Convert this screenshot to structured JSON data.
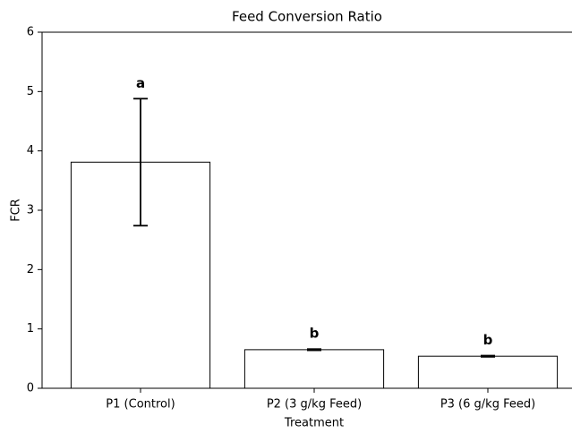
{
  "chart_data": {
    "type": "bar",
    "title": "Feed Conversion Ratio",
    "xlabel": "Treatment",
    "ylabel": "FCR",
    "categories": [
      "P1 (Control)",
      "P2 (3 g/kg Feed)",
      "P3 (6 g/kg Feed)"
    ],
    "values": [
      3.81,
      0.65,
      0.54
    ],
    "errors": [
      1.07,
      0.01,
      0.01
    ],
    "annotations": [
      "a",
      "b",
      "b"
    ],
    "color": "#ffffff",
    "ylim": [
      0,
      6
    ],
    "yticks": [
      0,
      1,
      2,
      3,
      4,
      5,
      6
    ],
    "grid": false
  }
}
